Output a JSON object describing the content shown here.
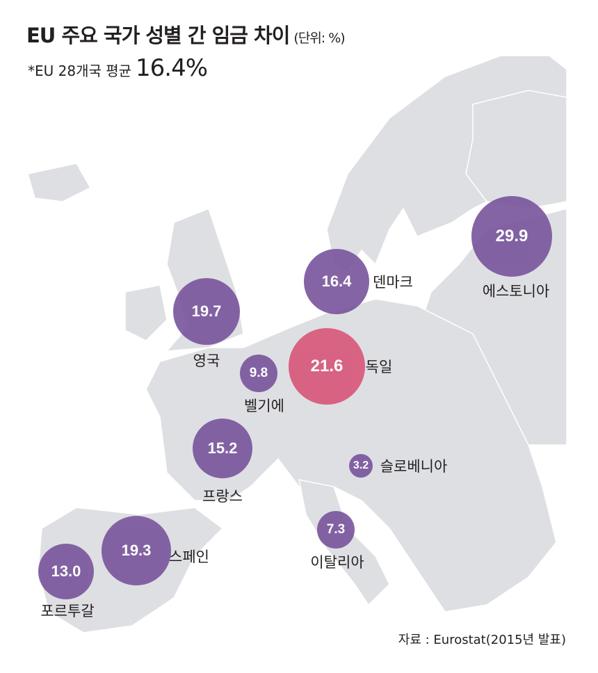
{
  "title": "EU 주요 국가 성별 간 임금 차이",
  "unit": "(단위: %)",
  "subtitle": {
    "label": "*EU 28개국 평균",
    "value": "16.4%"
  },
  "colors": {
    "bubble": "#7b579e",
    "highlight": "#d8587a",
    "land": "#dedfe3",
    "border": "#ffffff"
  },
  "countries": [
    {
      "name": "에스토니아",
      "value": "29.9"
    },
    {
      "name": "덴마크",
      "value": "16.4"
    },
    {
      "name": "영국",
      "value": "19.7"
    },
    {
      "name": "독일",
      "value": "21.6"
    },
    {
      "name": "벨기에",
      "value": "9.8"
    },
    {
      "name": "프랑스",
      "value": "15.2"
    },
    {
      "name": "슬로베니아",
      "value": "3.2"
    },
    {
      "name": "이탈리아",
      "value": "7.3"
    },
    {
      "name": "스페인",
      "value": "19.3"
    },
    {
      "name": "포르투갈",
      "value": "13.0"
    }
  ],
  "source": "자료 : Eurostat(2015년 발표)"
}
